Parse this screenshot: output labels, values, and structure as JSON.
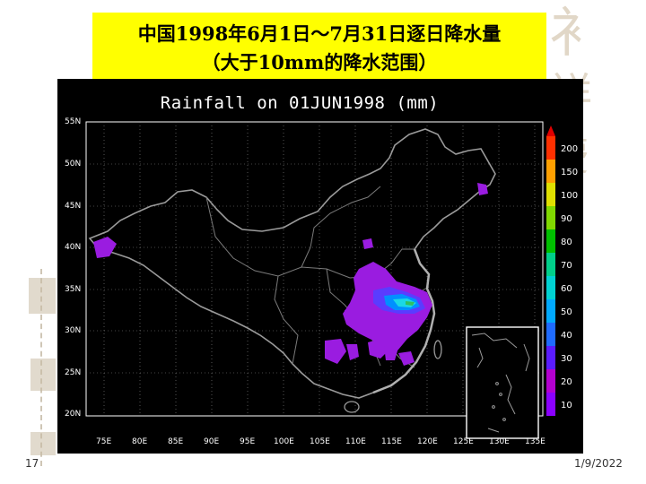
{
  "title": {
    "line1": "中国1998年6月1日～7月31日逐日降水量",
    "line2": "（大于10mm的降水范围）"
  },
  "map": {
    "title": "Rainfall on 01JUN1998 (mm)",
    "lat_labels": [
      "55N",
      "50N",
      "45N",
      "40N",
      "35N",
      "30N",
      "25N",
      "20N"
    ],
    "lon_labels": [
      "75E",
      "80E",
      "85E",
      "90E",
      "95E",
      "100E",
      "105E",
      "110E",
      "115E",
      "120E",
      "125E",
      "130E",
      "135E"
    ],
    "colorbar": {
      "labels": [
        "200",
        "150",
        "100",
        "90",
        "80",
        "70",
        "60",
        "50",
        "40",
        "30",
        "20",
        "10"
      ],
      "colors": [
        "#8b00ff",
        "#b400d0",
        "#5a1cff",
        "#1f6bff",
        "#00a9ff",
        "#00d2d2",
        "#00d08a",
        "#00c000",
        "#80d800",
        "#e0e000",
        "#ffa000",
        "#ff3000"
      ]
    },
    "rain_colors": {
      "light": "#9a1ce0",
      "medium": "#5a3cff",
      "heavy": "#0090ff",
      "core": "#1ad8e6",
      "peak": "#30c060"
    }
  },
  "footer": {
    "page_number": "17",
    "date": "1/9/2022"
  }
}
